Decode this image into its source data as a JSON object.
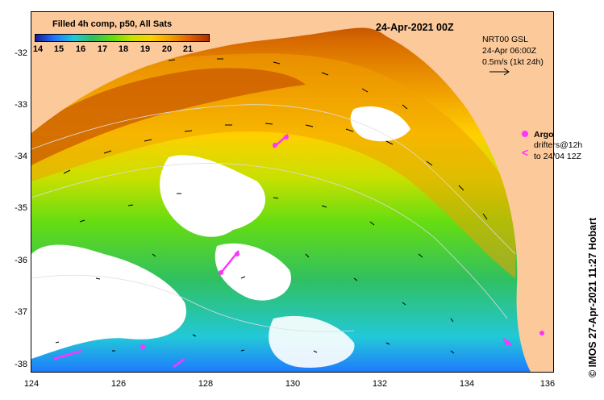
{
  "map_title": "24-Apr-2021 00Z",
  "colorbar": {
    "title": "Filled 4h comp, p50, All Sats",
    "labels": [
      "14",
      "15",
      "16",
      "17",
      "18",
      "19",
      "20",
      "21"
    ],
    "colors": [
      "#1a1a9a",
      "#1e78ff",
      "#22c8d8",
      "#30c060",
      "#66dd11",
      "#c8e000",
      "#ffd000",
      "#f0a000",
      "#e06000",
      "#b03000"
    ]
  },
  "info": {
    "line1": "NRT00 GSL",
    "line2": "24-Apr 06:00Z",
    "line3": "0.5m/s (1kt 24h)"
  },
  "legend": {
    "argo_label": "Argo",
    "drifter_symbol": "<",
    "drifter_line1": "drifters@12h",
    "drifter_line2": "to 24/04 12Z"
  },
  "credit": "© IMOS 27-Apr-2021 11:27 Hobart",
  "axes": {
    "lat_ticks": [
      "-32",
      "-33",
      "-34",
      "-35",
      "-36",
      "-37",
      "-38"
    ],
    "lon_ticks": [
      "124",
      "126",
      "128",
      "130",
      "132",
      "134",
      "136"
    ]
  },
  "colors": {
    "land": "#fcc99a",
    "cloud_gap": "#ffffff",
    "argo": "#ff33ff",
    "current_arrow": "#000000",
    "contour": "#dddddd"
  }
}
